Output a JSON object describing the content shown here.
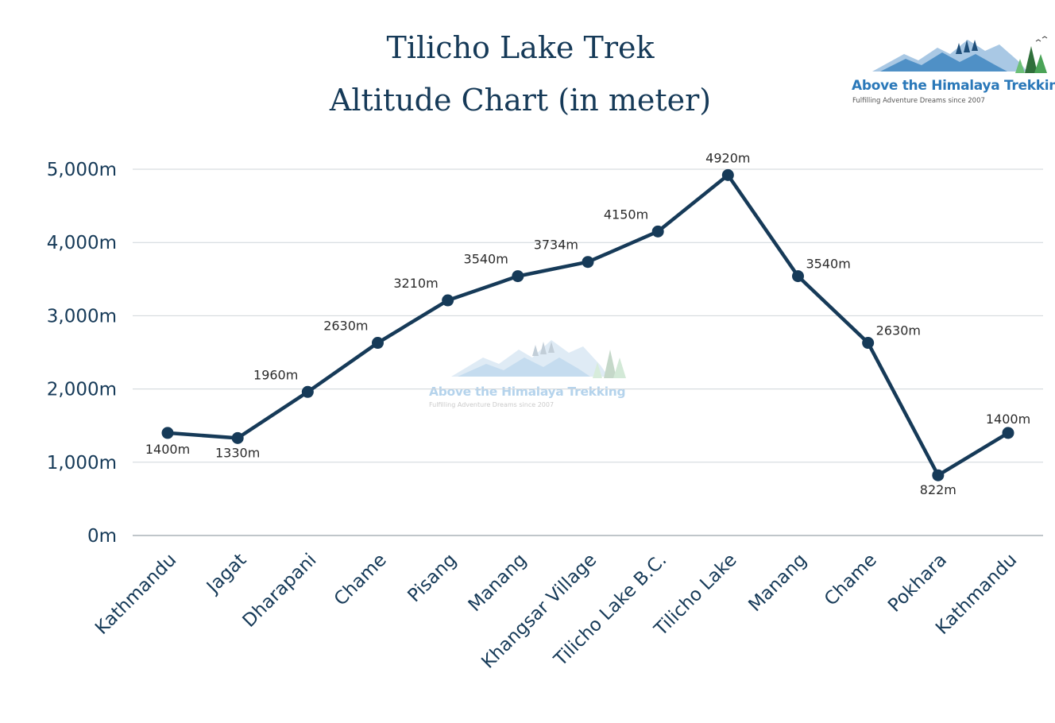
{
  "title": {
    "line1": "Tilicho Lake Trek",
    "line2": "Altitude Chart (in meter)"
  },
  "logo": {
    "name": "Above the Himalaya Trekking",
    "tagline": "Fulfilling Adventure Dreams since 2007"
  },
  "colors": {
    "line": "#163a58",
    "text": "#163a58",
    "grid": "#cfd5da",
    "logo_blue": "#2a78b9",
    "logo_green": "#3f9a4a"
  },
  "chart_data": {
    "type": "line",
    "title": "Tilicho Lake Trek Altitude Chart (in meter)",
    "categories": [
      "Kathmandu",
      "Jagat",
      "Dharapani",
      "Chame",
      "Pisang",
      "Manang",
      "Khangsar Village",
      "Tilicho Lake B.C.",
      "Tilicho Lake",
      "Manang",
      "Chame",
      "Pokhara",
      "Kathmandu"
    ],
    "series": [
      {
        "values": [
          1400,
          1330,
          1960,
          2630,
          3210,
          3540,
          3734,
          4150,
          4920,
          3540,
          2630,
          822,
          1400
        ],
        "labels": [
          "1400m",
          "1330m",
          "1960m",
          "2630m",
          "3210m",
          "3540m",
          "3734m",
          "4150m",
          "4920m",
          "3540m",
          "2630m",
          "822m",
          "1400m"
        ]
      }
    ],
    "yticks": [
      0,
      1000,
      2000,
      3000,
      4000,
      5000
    ],
    "ytick_labels": [
      "0m",
      "1,000m",
      "2,000m",
      "3,000m",
      "4,000m",
      "5,000m"
    ],
    "ylim": [
      0,
      5000
    ],
    "grid": true,
    "markers": true,
    "legend": "none"
  }
}
